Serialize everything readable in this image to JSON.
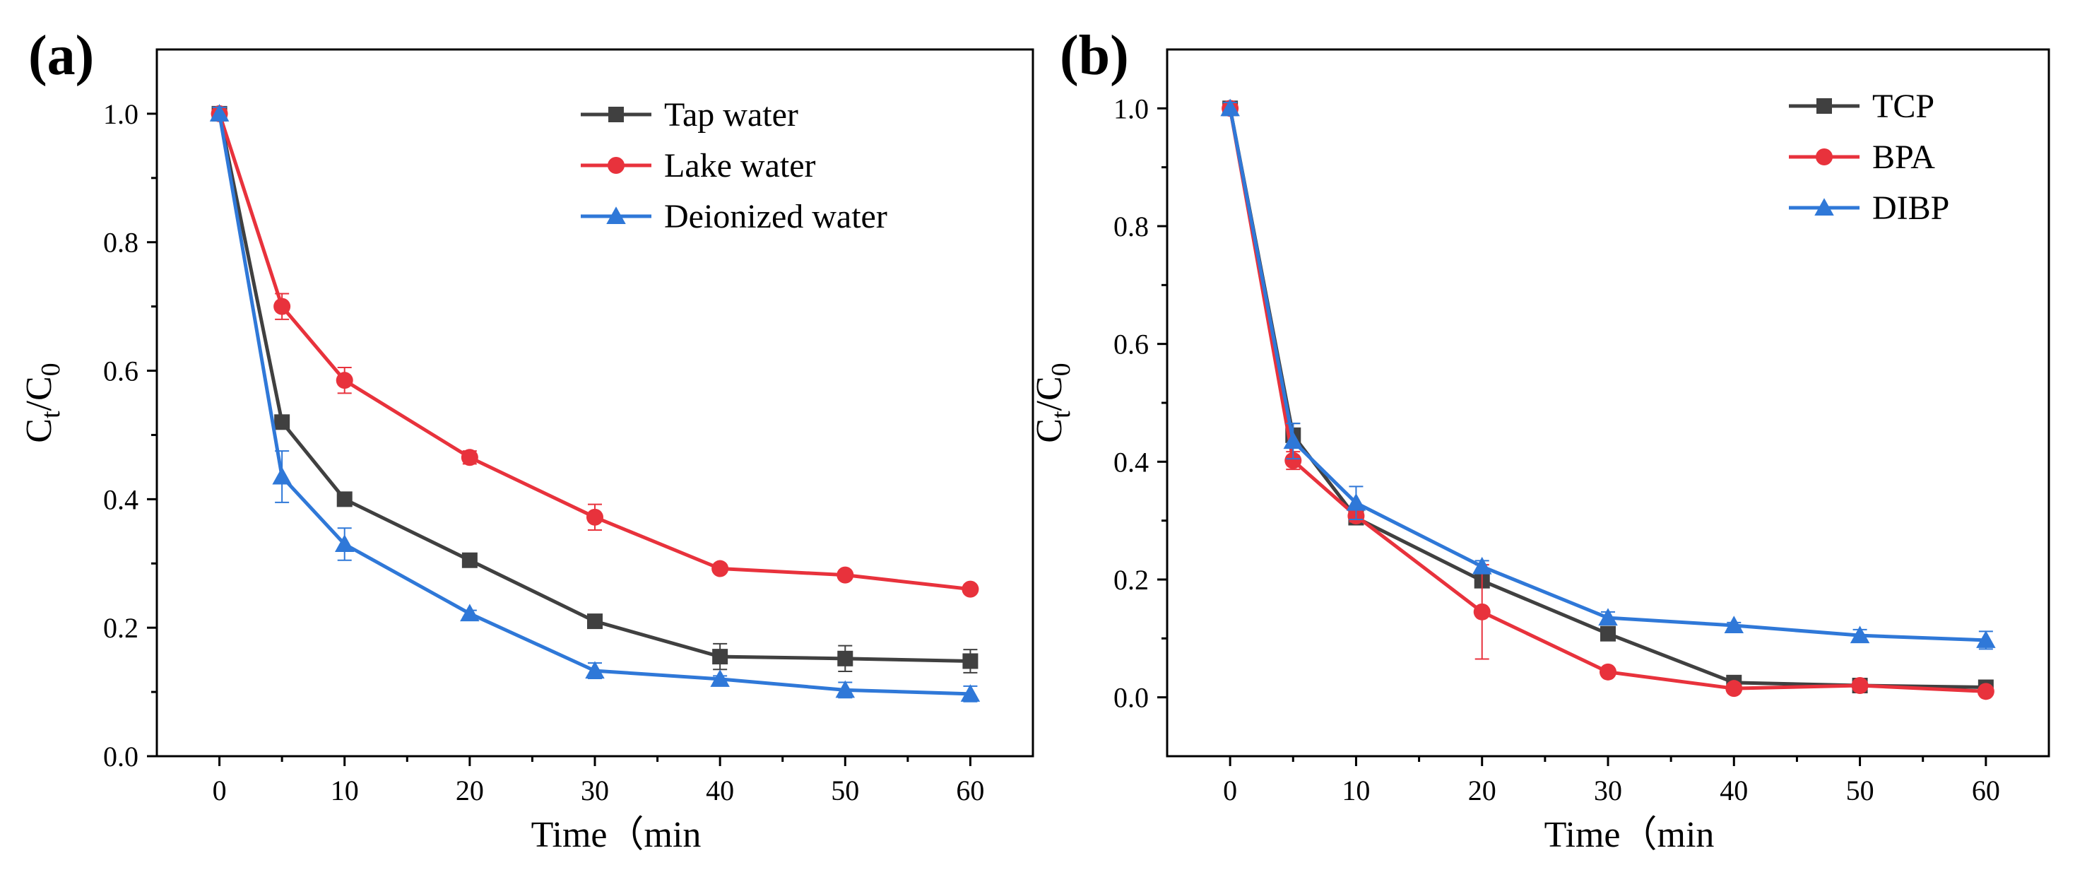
{
  "chart_data": [
    {
      "panel": "(a)",
      "type": "line",
      "title": "",
      "xlabel": "Time（min",
      "ylabel": "Ct/C0",
      "ylabel_main": "C",
      "ylabel_sub1": "t",
      "ylabel_sep": "/C",
      "ylabel_sub2": "0",
      "xlim": [
        -5,
        65
      ],
      "ylim": [
        0.0,
        1.1
      ],
      "xticks": [
        0,
        10,
        20,
        30,
        40,
        50,
        60
      ],
      "yticks": [
        0.0,
        0.2,
        0.4,
        0.6,
        0.8,
        1.0
      ],
      "xtick_labels": [
        "0",
        "10",
        "20",
        "30",
        "40",
        "50",
        "60"
      ],
      "ytick_labels": [
        "0.0",
        "0.2",
        "0.4",
        "0.6",
        "0.8",
        "1.0"
      ],
      "legend_position": "top-right",
      "series": [
        {
          "name": "Tap water",
          "color": "#404040",
          "marker": "square",
          "x": [
            0,
            5,
            10,
            20,
            30,
            40,
            50,
            60
          ],
          "values": [
            1.0,
            0.52,
            0.4,
            0.305,
            0.21,
            0.155,
            0.152,
            0.148
          ],
          "errors": [
            0.0,
            0.005,
            0.01,
            0.005,
            0.008,
            0.02,
            0.02,
            0.018
          ]
        },
        {
          "name": "Lake water",
          "color": "#e8323c",
          "marker": "circle",
          "x": [
            0,
            5,
            10,
            20,
            30,
            40,
            50,
            60
          ],
          "values": [
            1.0,
            0.7,
            0.585,
            0.465,
            0.372,
            0.292,
            0.282,
            0.26
          ],
          "errors": [
            0.01,
            0.02,
            0.02,
            0.01,
            0.02,
            0.005,
            0.005,
            0.005
          ]
        },
        {
          "name": "Deionized water",
          "color": "#2f78d8",
          "marker": "triangle",
          "x": [
            0,
            5,
            10,
            20,
            30,
            40,
            50,
            60
          ],
          "values": [
            1.0,
            0.435,
            0.33,
            0.222,
            0.133,
            0.12,
            0.103,
            0.097
          ],
          "errors": [
            0.01,
            0.04,
            0.025,
            0.005,
            0.012,
            0.005,
            0.012,
            0.012
          ]
        }
      ]
    },
    {
      "panel": "(b)",
      "type": "line",
      "title": "",
      "xlabel": "Time（min",
      "ylabel": "Ct/C0",
      "ylabel_main": "C",
      "ylabel_sub1": "t",
      "ylabel_sep": "/C",
      "ylabel_sub2": "0",
      "xlim": [
        -5,
        65
      ],
      "ylim": [
        -0.1,
        1.1
      ],
      "xticks": [
        0,
        10,
        20,
        30,
        40,
        50,
        60
      ],
      "yticks": [
        0.0,
        0.2,
        0.4,
        0.6,
        0.8,
        1.0
      ],
      "xtick_labels": [
        "0",
        "10",
        "20",
        "30",
        "40",
        "50",
        "60"
      ],
      "ytick_labels": [
        "0.0",
        "0.2",
        "0.4",
        "0.6",
        "0.8",
        "1.0"
      ],
      "legend_position": "top-right",
      "series": [
        {
          "name": "TCP",
          "color": "#404040",
          "marker": "square",
          "x": [
            0,
            5,
            10,
            20,
            30,
            40,
            50,
            60
          ],
          "values": [
            1.0,
            0.445,
            0.305,
            0.198,
            0.108,
            0.025,
            0.02,
            0.017
          ],
          "errors": [
            0.0,
            0.02,
            0.01,
            0.01,
            0.005,
            0.005,
            0.005,
            0.005
          ]
        },
        {
          "name": "BPA",
          "color": "#e8323c",
          "marker": "circle",
          "x": [
            0,
            5,
            10,
            20,
            30,
            40,
            50,
            60
          ],
          "values": [
            1.0,
            0.402,
            0.308,
            0.145,
            0.043,
            0.015,
            0.02,
            0.01
          ],
          "errors": [
            0.0,
            0.015,
            0.01,
            0.08,
            0.005,
            0.005,
            0.005,
            0.005
          ]
        },
        {
          "name": "DIBP",
          "color": "#2f78d8",
          "marker": "triangle",
          "x": [
            0,
            5,
            10,
            20,
            30,
            40,
            50,
            60
          ],
          "values": [
            1.0,
            0.435,
            0.33,
            0.222,
            0.135,
            0.122,
            0.105,
            0.097
          ],
          "errors": [
            0.01,
            0.03,
            0.028,
            0.01,
            0.01,
            0.005,
            0.01,
            0.015
          ]
        }
      ]
    }
  ]
}
